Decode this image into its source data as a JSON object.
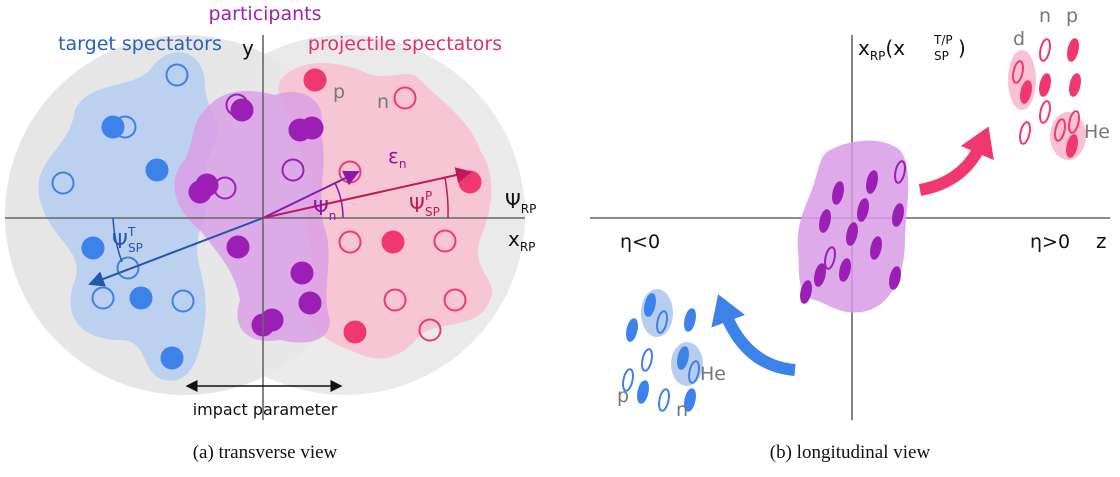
{
  "panel_a": {
    "participants": "participants",
    "target_spectators": "target spectators",
    "projectile_spectators": "projectile spectators",
    "y_axis": "y",
    "proton": "p",
    "neutron": "n",
    "epsilon_n": {
      "main": "ε",
      "sub": "n"
    },
    "psi_n": {
      "main": "Ψ",
      "sub": "n"
    },
    "psi_sp_p": {
      "main": "Ψ",
      "sup": "P",
      "sub": "SP"
    },
    "psi_sp_t": {
      "main": "Ψ",
      "sup": "T",
      "sub": "SP"
    },
    "psi_rp": {
      "main": "Ψ",
      "sub": "RP"
    },
    "x_rp": {
      "main": "x",
      "sub": "RP"
    },
    "impact_parameter": "impact parameter",
    "caption": "(a) transverse view"
  },
  "panel_b": {
    "vertical_axis": {
      "main": "x",
      "sub": "RP",
      "open": "(",
      "inner_main": "x",
      "inner_sup": "T/P",
      "inner_sub": "SP",
      "close": ")"
    },
    "eta_negative": "η<0",
    "eta_positive": "η>0",
    "z_axis": "z",
    "forward_fragments": {
      "deuteron": "d",
      "neutron": "n",
      "proton": "p",
      "helium": "He"
    },
    "backward_fragments": {
      "helium": "He",
      "proton": "p",
      "neutron": "n"
    },
    "caption": "(b) longitudinal view"
  }
}
